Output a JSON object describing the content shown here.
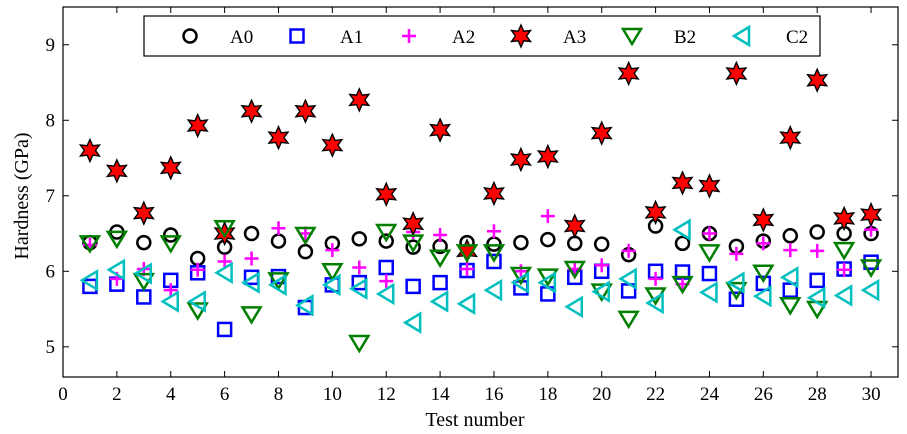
{
  "chart_data": {
    "type": "scatter",
    "xlabel": "Test number",
    "ylabel": "Hardness (GPa)",
    "xlim": [
      0,
      31
    ],
    "ylim": [
      4.6,
      9.5
    ],
    "xticks": [
      0,
      2,
      4,
      6,
      8,
      10,
      12,
      14,
      16,
      18,
      20,
      22,
      24,
      26,
      28,
      30
    ],
    "yticks": [
      5,
      6,
      7,
      8,
      9
    ],
    "grid": false,
    "legend_position": "top",
    "x": [
      1,
      2,
      3,
      4,
      5,
      6,
      7,
      8,
      9,
      10,
      11,
      12,
      13,
      14,
      15,
      16,
      17,
      18,
      19,
      20,
      21,
      22,
      23,
      24,
      25,
      26,
      27,
      28,
      29,
      30
    ],
    "series": [
      {
        "name": "A0",
        "marker": "circle",
        "color": "#000000",
        "values": [
          6.38,
          6.52,
          6.38,
          6.48,
          6.17,
          6.32,
          6.5,
          6.4,
          6.26,
          6.37,
          6.43,
          6.4,
          6.32,
          6.33,
          6.38,
          6.36,
          6.38,
          6.42,
          6.37,
          6.36,
          6.22,
          6.6,
          6.37,
          6.5,
          6.33,
          6.4,
          6.47,
          6.52,
          6.5,
          6.5
        ]
      },
      {
        "name": "A1",
        "marker": "square",
        "color": "#0000ff",
        "values": [
          5.8,
          5.83,
          5.66,
          5.88,
          5.98,
          5.23,
          5.92,
          5.93,
          5.52,
          5.82,
          5.85,
          6.05,
          5.8,
          5.85,
          6.01,
          6.13,
          5.78,
          5.7,
          5.92,
          6.0,
          5.74,
          6.0,
          5.99,
          5.97,
          5.63,
          5.84,
          5.75,
          5.88,
          6.03,
          6.12
        ]
      },
      {
        "name": "A2",
        "marker": "plus",
        "color": "#ff00ff",
        "values": [
          6.35,
          5.9,
          6.03,
          5.75,
          6.02,
          6.13,
          6.17,
          6.57,
          6.5,
          6.28,
          6.05,
          5.87,
          6.52,
          6.48,
          6.03,
          6.53,
          6.0,
          6.73,
          6.03,
          6.08,
          6.27,
          5.9,
          5.83,
          6.5,
          6.23,
          6.37,
          6.28,
          6.27,
          6.02,
          6.55
        ]
      },
      {
        "name": "A3",
        "marker": "star",
        "color": "#ff0000",
        "values": [
          7.6,
          7.33,
          6.77,
          7.37,
          7.93,
          6.5,
          8.12,
          7.77,
          8.12,
          7.67,
          8.27,
          7.02,
          6.63,
          7.87,
          6.27,
          7.03,
          7.48,
          7.52,
          6.6,
          7.83,
          8.62,
          6.78,
          7.17,
          7.13,
          8.62,
          6.68,
          7.77,
          8.53,
          6.7,
          6.75
        ]
      },
      {
        "name": "B2",
        "marker": "triangle-down",
        "color": "#007f00",
        "values": [
          6.37,
          6.43,
          5.87,
          6.37,
          5.48,
          6.57,
          5.43,
          5.88,
          6.48,
          6.0,
          5.05,
          6.52,
          6.38,
          6.18,
          6.25,
          6.25,
          5.95,
          5.93,
          6.03,
          5.73,
          5.37,
          5.68,
          5.83,
          6.25,
          5.75,
          5.98,
          5.55,
          5.5,
          6.28,
          6.05
        ]
      },
      {
        "name": "C2",
        "marker": "triangle-left",
        "color": "#00bfbf",
        "values": [
          5.88,
          6.02,
          5.97,
          5.6,
          5.6,
          5.98,
          5.85,
          5.82,
          5.55,
          5.82,
          5.77,
          5.7,
          5.32,
          5.6,
          5.57,
          5.75,
          5.85,
          5.85,
          5.53,
          5.73,
          5.9,
          5.58,
          6.55,
          5.72,
          5.85,
          5.67,
          5.92,
          5.65,
          5.68,
          5.75
        ]
      }
    ]
  }
}
